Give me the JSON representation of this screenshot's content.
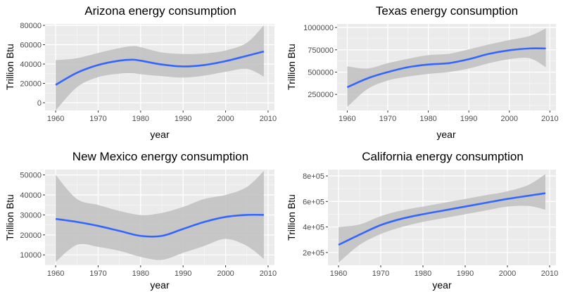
{
  "chart_data": [
    {
      "type": "line",
      "title": "Arizona energy consumption",
      "xlabel": "year",
      "ylabel": "Trillion Btu",
      "xlim": [
        1957.5,
        2011.5
      ],
      "ylim": [
        -8000,
        81500
      ],
      "x_ticks": [
        1960,
        1970,
        1980,
        1990,
        2000,
        2010
      ],
      "y_ticks": [
        0,
        20000,
        40000,
        60000,
        80000
      ],
      "y_tick_labels": [
        "0",
        "20000",
        "40000",
        "60000",
        "80000"
      ],
      "series": [
        {
          "x": [
            1960,
            1965,
            1970,
            1975,
            1978,
            1980,
            1985,
            1990,
            1995,
            2000,
            2005,
            2009
          ],
          "y": [
            18500,
            31000,
            39000,
            43500,
            44500,
            43500,
            39500,
            37500,
            39000,
            43000,
            48500,
            53000
          ],
          "lower": [
            -8000,
            16000,
            26500,
            30000,
            30500,
            29500,
            27500,
            26000,
            28000,
            32000,
            35000,
            27000
          ],
          "upper": [
            44000,
            46000,
            51500,
            56500,
            58500,
            57500,
            52000,
            50500,
            51000,
            54000,
            62000,
            80000
          ]
        }
      ],
      "grid": true,
      "colors": {
        "line": "#3366ff",
        "ribbon": "#bfbfbf",
        "panel": "#ebebeb"
      }
    },
    {
      "type": "line",
      "title": "Texas energy consumption",
      "xlabel": "year",
      "ylabel": "Trillion Btu",
      "xlim": [
        1957.5,
        2011.5
      ],
      "ylim": [
        70000,
        1040000
      ],
      "x_ticks": [
        1960,
        1970,
        1980,
        1990,
        2000,
        2010
      ],
      "y_ticks": [
        250000,
        500000,
        750000,
        1000000
      ],
      "y_tick_labels": [
        "250000",
        "500000",
        "750000",
        "1000000"
      ],
      "series": [
        {
          "x": [
            1960,
            1965,
            1970,
            1975,
            1980,
            1985,
            1990,
            1995,
            2000,
            2005,
            2009
          ],
          "y": [
            330000,
            430000,
            500000,
            555000,
            585000,
            600000,
            645000,
            705000,
            745000,
            765000,
            765000
          ],
          "lower": [
            110000,
            310000,
            405000,
            450000,
            480000,
            500000,
            540000,
            600000,
            645000,
            655000,
            555000
          ],
          "upper": [
            565000,
            540000,
            600000,
            650000,
            690000,
            705000,
            755000,
            810000,
            860000,
            905000,
            990000
          ]
        }
      ],
      "grid": true,
      "colors": {
        "line": "#3366ff",
        "ribbon": "#bfbfbf",
        "panel": "#ebebeb"
      }
    },
    {
      "type": "line",
      "title": "New Mexico energy consumption",
      "xlabel": "year",
      "ylabel": "Trillion Btu",
      "xlim": [
        1957.5,
        2011.5
      ],
      "ylim": [
        4800,
        52700
      ],
      "x_ticks": [
        1960,
        1970,
        1980,
        1990,
        2000,
        2010
      ],
      "y_ticks": [
        10000,
        20000,
        30000,
        40000,
        50000
      ],
      "y_tick_labels": [
        "10000",
        "20000",
        "30000",
        "40000",
        "50000"
      ],
      "series": [
        {
          "x": [
            1960,
            1965,
            1970,
            1975,
            1980,
            1985,
            1990,
            1995,
            2000,
            2005,
            2009
          ],
          "y": [
            28000,
            26500,
            24500,
            22000,
            19500,
            19500,
            23000,
            26500,
            29000,
            30000,
            30000
          ],
          "lower": [
            6500,
            15000,
            14000,
            12000,
            9000,
            7500,
            11000,
            14500,
            18000,
            14500,
            8000
          ],
          "upper": [
            50000,
            38000,
            35000,
            32000,
            30000,
            31000,
            34000,
            38000,
            40000,
            44000,
            52000
          ]
        }
      ],
      "grid": true,
      "colors": {
        "line": "#3366ff",
        "ribbon": "#bfbfbf",
        "panel": "#ebebeb"
      }
    },
    {
      "type": "line",
      "title": "California energy consumption",
      "xlabel": "year",
      "ylabel": "Trillion Btu",
      "xlim": [
        1957.5,
        2011.5
      ],
      "ylim": [
        100000,
        850000
      ],
      "x_ticks": [
        1960,
        1970,
        1980,
        1990,
        2000,
        2010
      ],
      "y_ticks": [
        200000,
        400000,
        600000,
        800000
      ],
      "y_tick_labels": [
        "2e+05",
        "4e+05",
        "6e+05",
        "8e+05"
      ],
      "series": [
        {
          "x": [
            1960,
            1965,
            1970,
            1975,
            1980,
            1985,
            1990,
            1995,
            2000,
            2005,
            2009
          ],
          "y": [
            260000,
            340000,
            415000,
            465000,
            500000,
            530000,
            560000,
            590000,
            620000,
            645000,
            665000
          ],
          "lower": [
            120000,
            260000,
            345000,
            400000,
            440000,
            470000,
            500000,
            530000,
            560000,
            565000,
            535000
          ],
          "upper": [
            400000,
            420000,
            485000,
            530000,
            560000,
            590000,
            620000,
            650000,
            680000,
            730000,
            815000
          ]
        }
      ],
      "grid": true,
      "colors": {
        "line": "#3366ff",
        "ribbon": "#bfbfbf",
        "panel": "#ebebeb"
      }
    }
  ]
}
